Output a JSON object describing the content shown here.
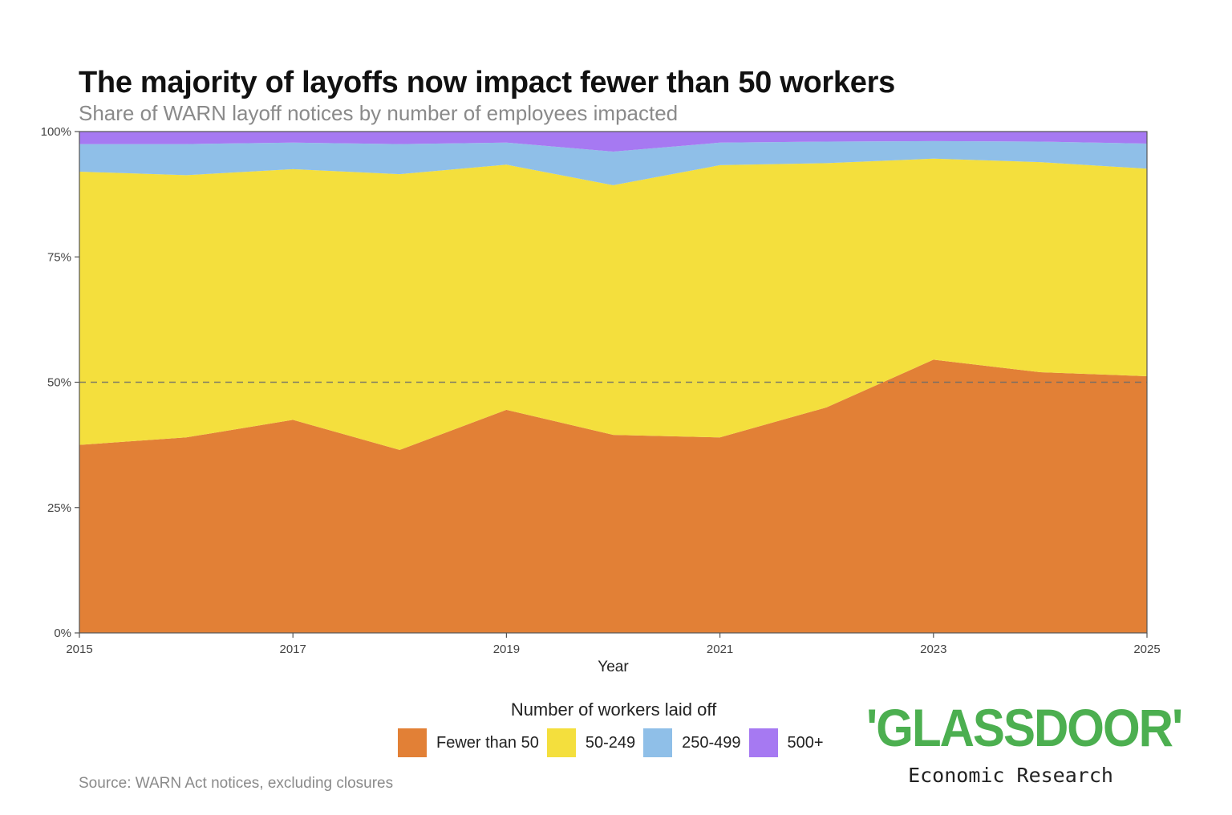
{
  "chart_data": {
    "type": "area",
    "stacked": true,
    "title": "The majority of layoffs now impact fewer than 50 workers",
    "subtitle": "Share of WARN layoff notices by number of employees impacted",
    "xlabel": "Year",
    "ylabel": "",
    "x": [
      2015,
      2016,
      2017,
      2018,
      2019,
      2020,
      2021,
      2022,
      2023,
      2024,
      2025
    ],
    "xticks": [
      "2015",
      "2017",
      "2019",
      "2021",
      "2023",
      "2025"
    ],
    "yticks": [
      "0%",
      "25%",
      "50%",
      "75%",
      "100%"
    ],
    "ylim": [
      0,
      100
    ],
    "reference_line": {
      "y": 50,
      "style": "dashed"
    },
    "grid": false,
    "legend_position": "bottom",
    "legend_title": "Number of workers laid off",
    "series": [
      {
        "name": "Fewer than 50",
        "color": "#e28036",
        "values": [
          37.5,
          39.0,
          42.5,
          36.5,
          44.5,
          39.5,
          39.0,
          45.0,
          54.5,
          52.0,
          51.2
        ]
      },
      {
        "name": "50-249",
        "color": "#f4df3d",
        "values": [
          54.5,
          52.3,
          50.0,
          55.0,
          48.9,
          49.8,
          54.3,
          48.7,
          40.1,
          41.9,
          41.4
        ]
      },
      {
        "name": "250-499",
        "color": "#8fbfe8",
        "values": [
          5.5,
          6.2,
          5.3,
          6.0,
          4.4,
          6.7,
          4.5,
          4.3,
          3.5,
          4.1,
          5.0
        ]
      },
      {
        "name": "500+",
        "color": "#a679f2",
        "values": [
          2.5,
          2.5,
          2.2,
          2.5,
          2.2,
          4.0,
          2.2,
          2.0,
          1.9,
          2.0,
          2.4
        ]
      }
    ]
  },
  "source_note": "Source: WARN Act notices, excluding closures",
  "brand": {
    "logo_text": "'GLASSDOOR'",
    "subtitle": "Economic Research",
    "color": "#4caf50"
  }
}
